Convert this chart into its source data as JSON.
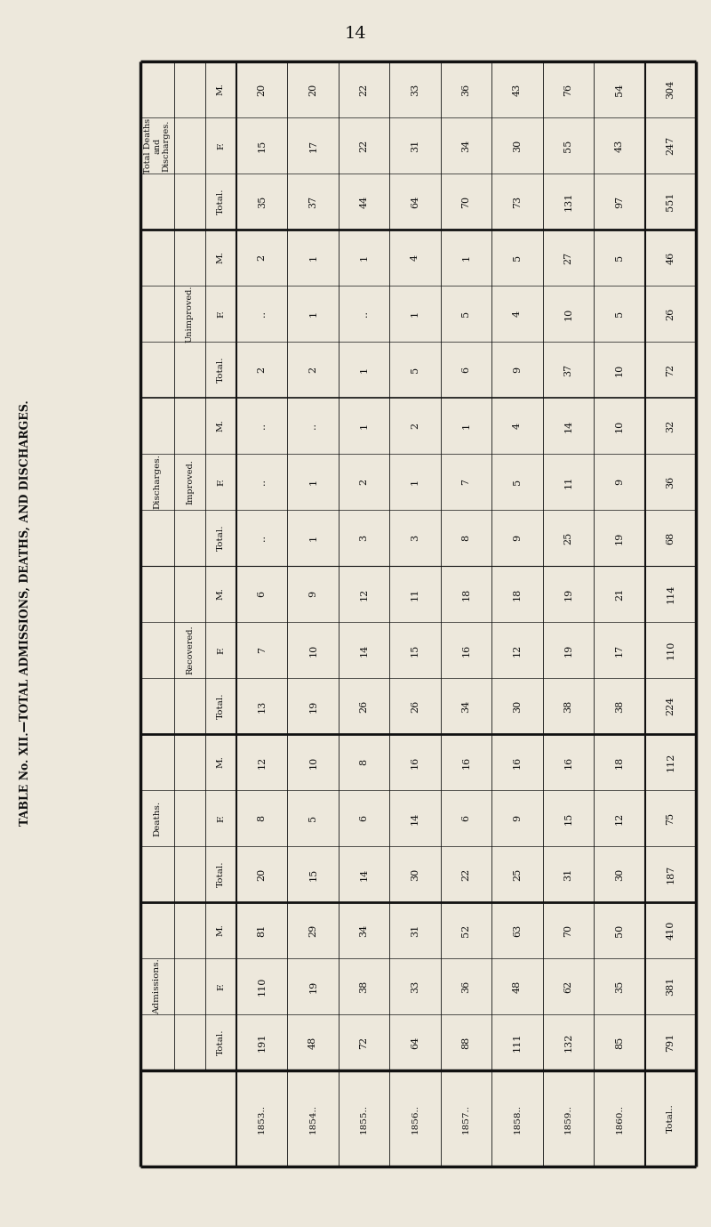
{
  "page_number": "14",
  "title_rotated": "TABLE No. XII.—TOTAL ADMISSIONS, DEATHS, AND DISCHARGES.",
  "paper_color": "#ede8dc",
  "text_color": "#111111",
  "rows": [
    "1853..",
    "1854..",
    "1855..",
    "1856..",
    "1857..",
    "1858..",
    "1859..",
    "1860..",
    "Total.."
  ],
  "admissions_M": [
    81,
    29,
    34,
    31,
    52,
    63,
    70,
    50,
    410
  ],
  "admissions_F": [
    110,
    19,
    38,
    33,
    36,
    48,
    62,
    35,
    381
  ],
  "admissions_T": [
    191,
    48,
    72,
    64,
    88,
    111,
    132,
    85,
    791
  ],
  "deaths_M": [
    12,
    10,
    8,
    16,
    16,
    16,
    16,
    18,
    112
  ],
  "deaths_F": [
    8,
    5,
    6,
    14,
    6,
    9,
    15,
    12,
    75
  ],
  "deaths_T": [
    20,
    15,
    14,
    30,
    22,
    25,
    31,
    30,
    187
  ],
  "recovered_M": [
    6,
    9,
    12,
    11,
    18,
    18,
    19,
    21,
    114
  ],
  "recovered_F": [
    7,
    10,
    14,
    15,
    16,
    12,
    19,
    17,
    110
  ],
  "recovered_T": [
    13,
    19,
    26,
    26,
    34,
    30,
    38,
    38,
    224
  ],
  "improved_M": [
    "..",
    "..",
    1,
    2,
    1,
    4,
    14,
    10,
    32
  ],
  "improved_F": [
    "..",
    1,
    2,
    1,
    7,
    5,
    11,
    9,
    36
  ],
  "improved_T": [
    "..",
    1,
    3,
    3,
    8,
    9,
    25,
    19,
    68
  ],
  "unimproved_M": [
    2,
    1,
    1,
    4,
    1,
    5,
    27,
    5,
    46
  ],
  "unimproved_F": [
    "..",
    1,
    "..",
    1,
    5,
    4,
    10,
    5,
    26
  ],
  "unimproved_T": [
    2,
    2,
    1,
    5,
    6,
    9,
    37,
    10,
    72
  ],
  "totdd_M": [
    20,
    20,
    22,
    33,
    36,
    43,
    76,
    54,
    304
  ],
  "totdd_F": [
    15,
    17,
    22,
    31,
    34,
    30,
    55,
    43,
    247
  ],
  "totdd_T": [
    35,
    37,
    44,
    64,
    70,
    73,
    131,
    97,
    551
  ]
}
